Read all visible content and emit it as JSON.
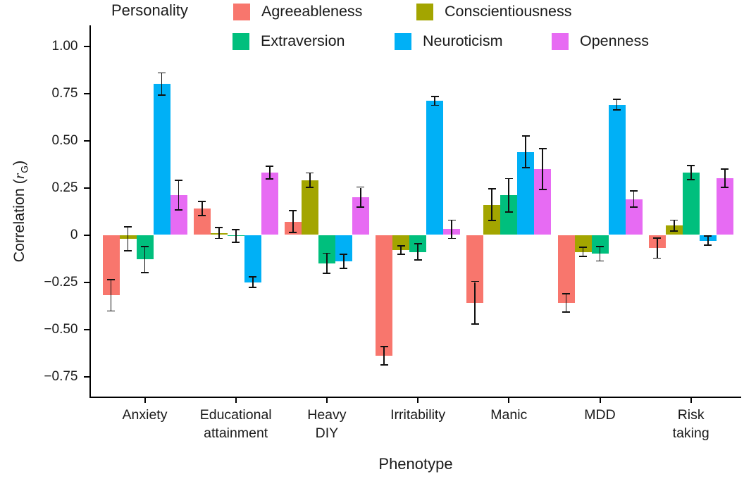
{
  "chart_data": {
    "type": "bar",
    "title": "",
    "legend_title": "Personality",
    "legend_position": "top",
    "grid": false,
    "xlabel": "Phenotype",
    "ylabel": "Correlation (rG)",
    "ylabel_prefix": "Correlation (",
    "ylabel_var": "r",
    "ylabel_sub": "G",
    "ylabel_suffix": ")",
    "ylim": [
      -0.87,
      1.12
    ],
    "yticks": [
      {
        "value": 1.0,
        "label": "1.00"
      },
      {
        "value": 0.75,
        "label": "0.75"
      },
      {
        "value": 0.5,
        "label": "0.50"
      },
      {
        "value": 0.25,
        "label": "0.25"
      },
      {
        "value": 0.0,
        "label": "0"
      },
      {
        "value": -0.25,
        "label": "−0.25"
      },
      {
        "value": -0.5,
        "label": "−0.50"
      },
      {
        "value": -0.75,
        "label": "−0.75"
      }
    ],
    "categories": [
      "Anxiety",
      "Educational attainment",
      "Heavy DIY",
      "Irritability",
      "Manic",
      "MDD",
      "Risk taking"
    ],
    "category_label_lines": [
      [
        "Anxiety"
      ],
      [
        "Educational",
        "attainment"
      ],
      [
        "Heavy",
        "DIY"
      ],
      [
        "Irritability"
      ],
      [
        "Manic"
      ],
      [
        "MDD"
      ],
      [
        "Risk",
        "taking"
      ]
    ],
    "error_bars": true,
    "series": [
      {
        "name": "Agreeableness",
        "color": "#F8766D",
        "values": [
          -0.32,
          0.14,
          0.07,
          -0.64,
          -0.36,
          -0.36,
          -0.07
        ],
        "errors": [
          0.08,
          0.035,
          0.055,
          0.045,
          0.11,
          0.045,
          0.05
        ]
      },
      {
        "name": "Conscientiousness",
        "color": "#A3A500",
        "values": [
          -0.02,
          0.01,
          0.29,
          -0.08,
          0.16,
          -0.09,
          0.05
        ],
        "errors": [
          0.06,
          0.025,
          0.035,
          0.02,
          0.08,
          0.02,
          0.025
        ]
      },
      {
        "name": "Extraversion",
        "color": "#00BF7D",
        "values": [
          -0.13,
          -0.005,
          -0.15,
          -0.09,
          0.21,
          -0.1,
          0.33
        ],
        "errors": [
          0.065,
          0.03,
          0.05,
          0.04,
          0.085,
          0.035,
          0.035
        ]
      },
      {
        "name": "Neuroticism",
        "color": "#00B0F6",
        "values": [
          0.8,
          -0.25,
          -0.14,
          0.71,
          0.44,
          0.69,
          -0.03
        ],
        "errors": [
          0.055,
          0.025,
          0.035,
          0.02,
          0.08,
          0.025,
          0.02
        ]
      },
      {
        "name": "Openness",
        "color": "#E76BF3",
        "values": [
          0.21,
          0.33,
          0.2,
          0.03,
          0.35,
          0.19,
          0.3
        ],
        "errors": [
          0.075,
          0.03,
          0.05,
          0.045,
          0.105,
          0.04,
          0.045
        ]
      }
    ]
  }
}
